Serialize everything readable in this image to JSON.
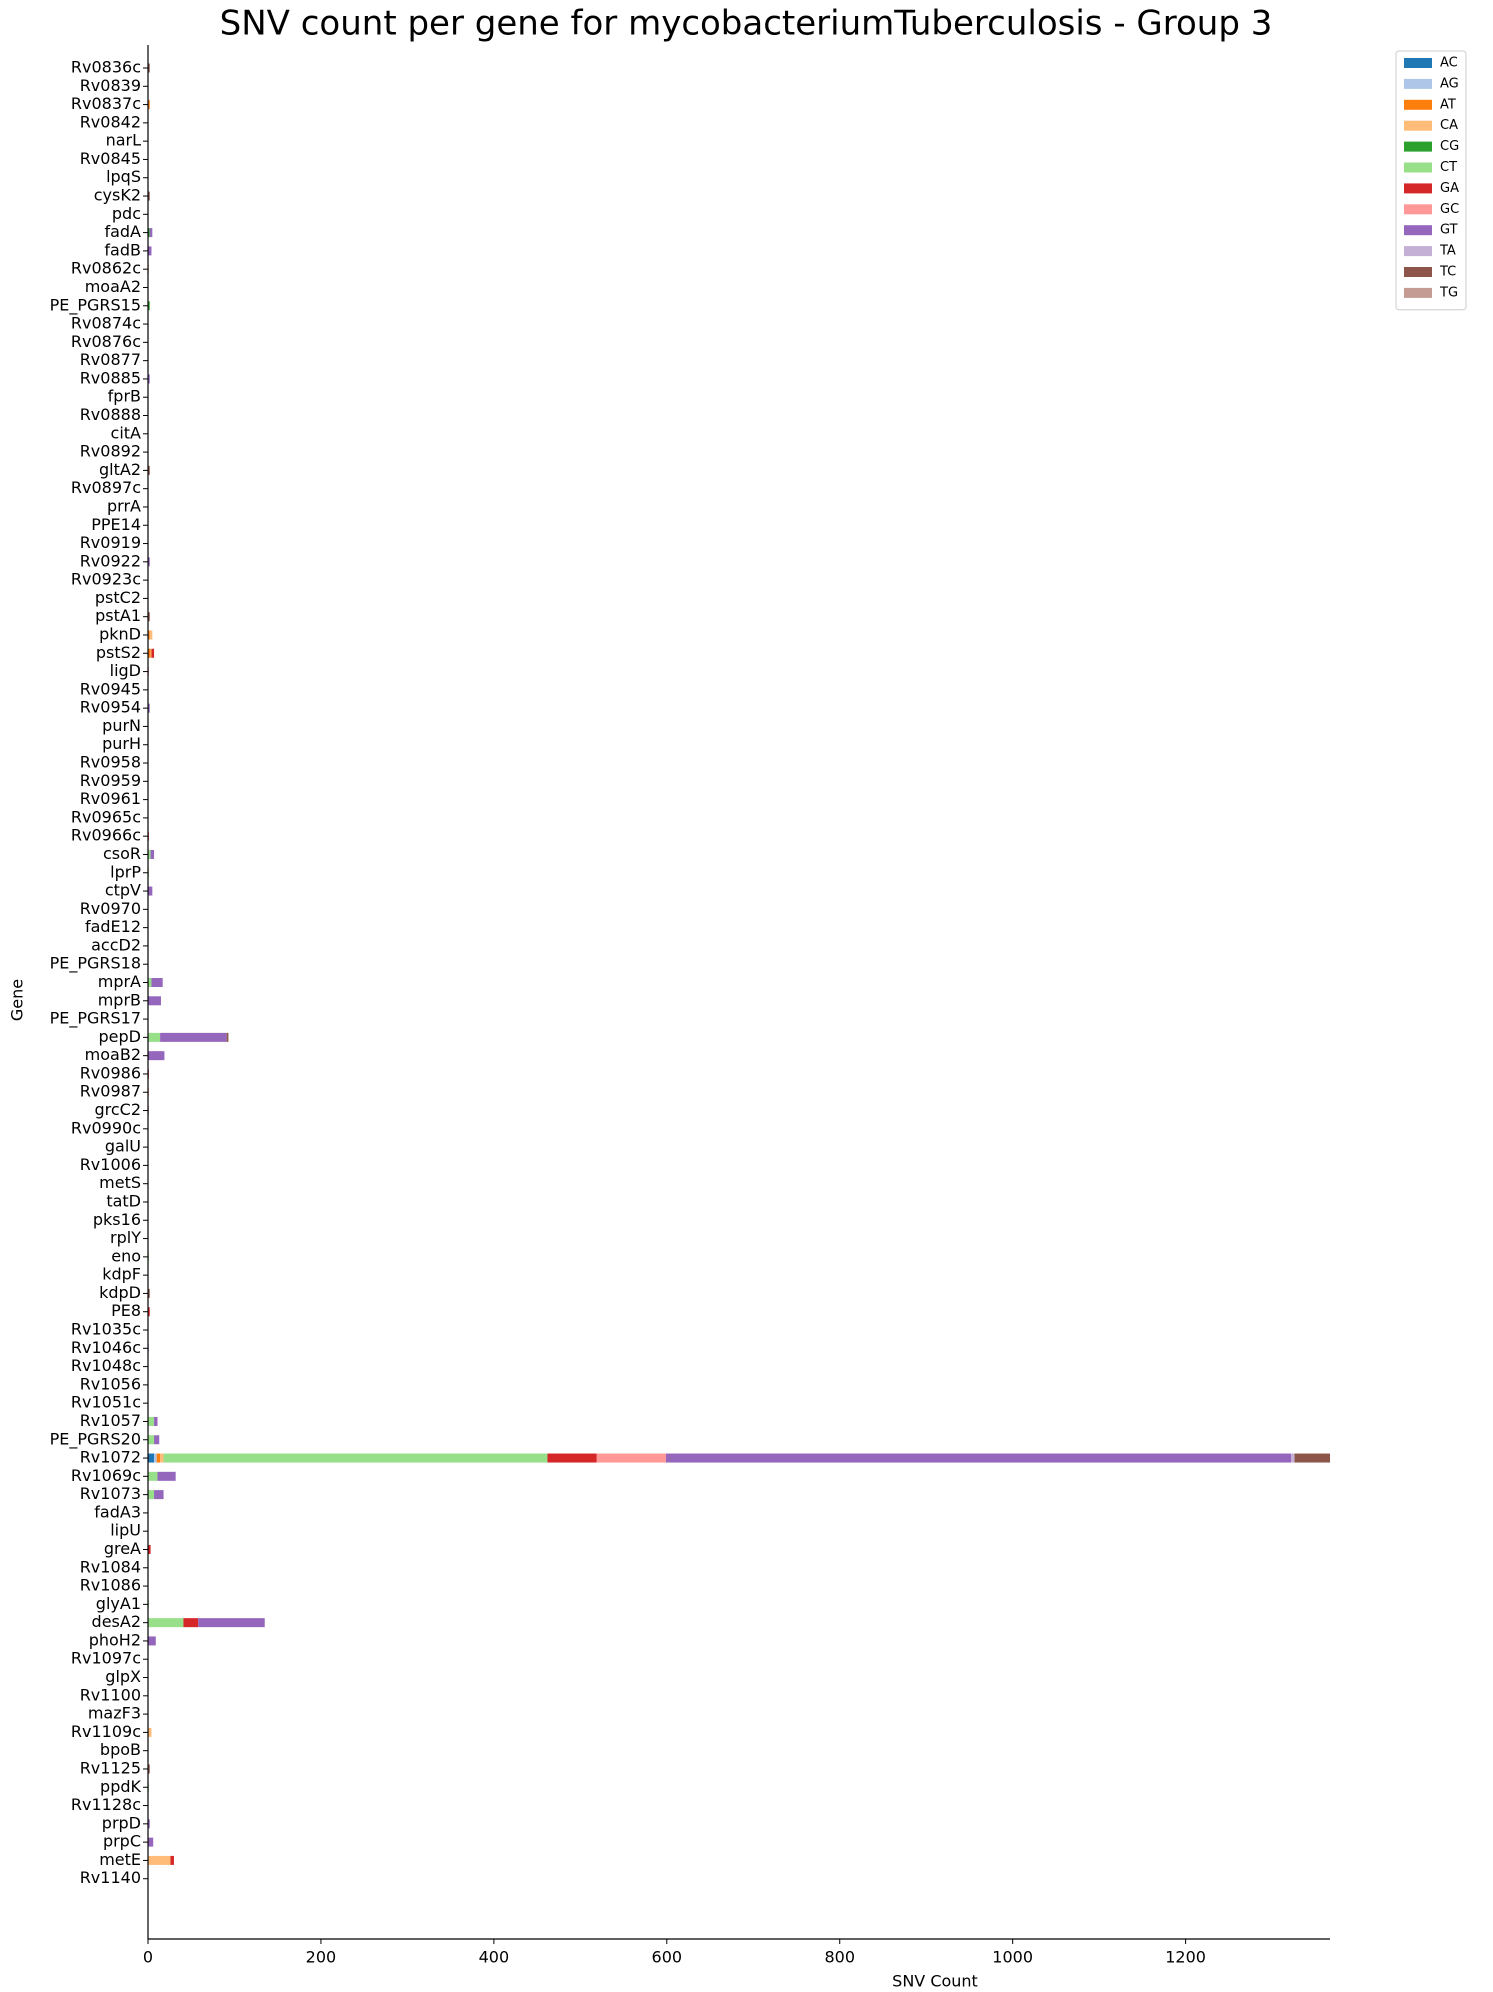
{
  "chart_data": {
    "type": "barh-stacked",
    "title": "SNV count per gene for mycobacteriumTuberculosis - Group 3",
    "xlabel": "SNV Count",
    "ylabel": "Gene",
    "categories": [
      "Rv0836c",
      "Rv0839",
      "Rv0837c",
      "Rv0842",
      "narL",
      "Rv0845",
      "lpqS",
      "cysK2",
      "pdc",
      "fadA",
      "fadB",
      "Rv0862c",
      "moaA2",
      "PE_PGRS15",
      "Rv0874c",
      "Rv0876c",
      "Rv0877",
      "Rv0885",
      "fprB",
      "Rv0888",
      "citA",
      "Rv0892",
      "gltA2",
      "Rv0897c",
      "prrA",
      "PPE14",
      "Rv0919",
      "Rv0922",
      "Rv0923c",
      "pstC2",
      "pstA1",
      "pknD",
      "pstS2",
      "ligD",
      "Rv0945",
      "Rv0954",
      "purN",
      "purH",
      "Rv0958",
      "Rv0959",
      "Rv0961",
      "Rv0965c",
      "Rv0966c",
      "csoR",
      "lprP",
      "ctpV",
      "Rv0970",
      "fadE12",
      "accD2",
      "PE_PGRS18",
      "mprA",
      "mprB",
      "PE_PGRS17",
      "pepD",
      "moaB2",
      "Rv0986",
      "Rv0987",
      "grcC2",
      "Rv0990c",
      "galU",
      "Rv1006",
      "metS",
      "tatD",
      "pks16",
      "rplY",
      "eno",
      "kdpF",
      "kdpD",
      "PE8",
      "Rv1035c",
      "Rv1046c",
      "Rv1048c",
      "Rv1056",
      "Rv1051c",
      "Rv1057",
      "PE_PGRS20",
      "Rv1072",
      "Rv1069c",
      "Rv1073",
      "fadA3",
      "lipU",
      "greA",
      "Rv1084",
      "Rv1086",
      "glyA1",
      "desA2",
      "phoH2",
      "Rv1097c",
      "glpX",
      "Rv1100",
      "mazF3",
      "Rv1109c",
      "bpoB",
      "Rv1125",
      "ppdK",
      "Rv1128c",
      "prpD",
      "prpC",
      "metE",
      "Rv1140"
    ],
    "series": [
      {
        "name": "AC",
        "color": "#1f77b4",
        "values": [
          0,
          0,
          0,
          0,
          0,
          0,
          0,
          0,
          0,
          0,
          0,
          0,
          0,
          0,
          0,
          0,
          0,
          0,
          0,
          0,
          0,
          0,
          0,
          0,
          0,
          0,
          0,
          0,
          0,
          0,
          0,
          0,
          0,
          0,
          0,
          0,
          0,
          0,
          0,
          0,
          0,
          0,
          0,
          0,
          0,
          0,
          0,
          0,
          0,
          0,
          0,
          0,
          0,
          0,
          0,
          0,
          0,
          0,
          0,
          0,
          0,
          0,
          0,
          0,
          0,
          0,
          0,
          0,
          0,
          0,
          0,
          0,
          0,
          0,
          0,
          0,
          7,
          0,
          0,
          0,
          0,
          0,
          0,
          0,
          0,
          0,
          0,
          0,
          0,
          0,
          0,
          0,
          0,
          0,
          0,
          0,
          0,
          0,
          0,
          0
        ]
      },
      {
        "name": "AG",
        "color": "#aec7e8",
        "values": [
          0,
          0,
          0,
          0,
          0,
          0,
          0,
          0,
          0,
          0,
          0,
          0,
          0,
          0,
          0,
          0,
          0,
          0,
          0,
          0,
          0,
          0,
          0,
          0,
          0,
          0,
          0,
          0,
          0,
          0,
          0,
          0,
          0,
          0,
          0,
          0,
          0,
          0,
          0,
          0,
          0,
          0,
          0,
          0,
          0,
          0,
          0,
          0,
          0,
          0,
          0,
          0,
          0,
          0,
          0,
          0,
          0,
          0,
          0,
          0,
          0,
          0,
          0,
          0,
          0,
          0,
          0,
          0,
          0,
          0,
          0,
          0,
          0,
          0,
          0,
          0,
          3,
          0,
          0,
          0,
          0,
          0,
          0,
          0,
          0,
          0,
          0,
          0,
          0,
          0,
          0,
          0,
          0,
          0,
          0,
          0,
          0,
          0,
          0,
          0
        ]
      },
      {
        "name": "AT",
        "color": "#ff7f0e",
        "values": [
          0,
          0,
          2,
          0,
          0,
          0,
          0,
          0,
          0,
          0,
          0,
          0,
          0,
          0,
          0,
          0,
          0,
          0,
          0,
          0,
          0,
          0,
          0,
          0,
          0,
          0,
          0,
          0,
          0,
          0,
          0,
          2,
          3,
          0,
          0,
          0,
          0,
          0,
          0,
          0,
          0,
          0,
          0,
          0,
          0,
          0,
          0,
          0,
          0,
          0,
          0,
          0,
          0,
          0,
          0,
          0,
          0,
          0,
          0,
          0,
          0,
          0,
          0,
          0,
          0,
          0,
          0,
          0,
          0,
          0,
          0,
          0,
          0,
          0,
          0,
          0,
          4,
          0,
          0,
          0,
          0,
          0,
          0,
          0,
          0,
          0,
          0,
          0,
          0,
          0,
          0,
          0,
          0,
          0,
          0,
          0,
          0,
          0,
          0,
          0
        ]
      },
      {
        "name": "CA",
        "color": "#ffbb78",
        "values": [
          0,
          0,
          0,
          0,
          0,
          0,
          0,
          0,
          0,
          0,
          0,
          1,
          0,
          0,
          0,
          0,
          0,
          0,
          0,
          0,
          0,
          0,
          0,
          0,
          0,
          0,
          0,
          0,
          0,
          0,
          0,
          3,
          1,
          0,
          0,
          0,
          0,
          0,
          0,
          0,
          0,
          0,
          0,
          0,
          0,
          0,
          0,
          0,
          0,
          0,
          0,
          0,
          0,
          0,
          0,
          0,
          0,
          0,
          0,
          0,
          0,
          0,
          0,
          0,
          0,
          0,
          0,
          0,
          0,
          0,
          0,
          0,
          0,
          0,
          0,
          0,
          4,
          0,
          0,
          0,
          0,
          0,
          0,
          0,
          0,
          0,
          0,
          0,
          0,
          0,
          0,
          4,
          0,
          0,
          0,
          0,
          0,
          0,
          26,
          0
        ]
      },
      {
        "name": "CG",
        "color": "#2ca02c",
        "values": [
          0,
          0,
          0,
          0,
          0,
          0,
          0,
          0,
          0,
          2,
          0,
          0,
          0,
          2,
          0,
          0,
          0,
          0,
          0,
          0,
          0,
          0,
          0,
          0,
          0,
          0,
          0,
          0,
          0,
          0,
          0,
          0,
          0,
          0,
          0,
          0,
          0,
          0,
          0,
          0,
          0,
          0,
          0,
          0,
          0,
          0,
          0,
          0,
          0,
          0,
          0,
          0,
          0,
          0,
          0,
          0,
          0,
          0,
          0,
          0,
          0,
          0,
          0,
          0,
          0,
          0,
          0,
          0,
          0,
          0,
          0,
          0,
          0,
          0,
          0,
          0,
          0,
          0,
          0,
          0,
          0,
          0,
          0,
          0,
          0,
          0,
          0,
          0,
          0,
          0,
          0,
          0,
          0,
          0,
          0,
          0,
          0,
          0,
          0,
          0
        ]
      },
      {
        "name": "CT",
        "color": "#98df8a",
        "values": [
          0,
          0,
          0,
          0,
          0,
          0,
          0,
          0,
          0,
          0,
          0,
          0,
          0,
          0,
          0,
          0,
          0,
          0,
          0,
          0,
          0,
          0,
          0,
          0,
          0,
          0,
          0,
          0,
          0,
          0,
          0,
          0,
          0,
          0,
          0,
          0,
          0,
          0,
          0,
          0,
          0,
          0,
          0,
          3,
          1,
          0,
          0,
          0,
          0,
          0,
          4,
          0,
          0,
          14,
          0,
          0,
          0,
          0,
          0,
          0,
          0,
          0,
          0,
          0,
          0,
          1,
          0,
          0,
          0,
          0,
          0,
          0,
          0,
          0,
          7,
          7,
          444,
          11,
          7,
          0,
          0,
          0,
          0,
          0,
          1,
          41,
          0,
          0,
          0,
          0,
          0,
          0,
          0,
          0,
          1,
          0,
          0,
          0,
          0,
          0
        ]
      },
      {
        "name": "GA",
        "color": "#d62728",
        "values": [
          0,
          0,
          0,
          0,
          0,
          0,
          0,
          0,
          0,
          0,
          0,
          0,
          0,
          0,
          0,
          0,
          0,
          0,
          0,
          0,
          0,
          0,
          0,
          0,
          0,
          0,
          0,
          0,
          0,
          0,
          0,
          0,
          3,
          0,
          0,
          0,
          0,
          0,
          0,
          0,
          0,
          0,
          1,
          0,
          0,
          0,
          0,
          0,
          0,
          0,
          0,
          0,
          0,
          0,
          0,
          1,
          0,
          0,
          0,
          0,
          0,
          0,
          0,
          0,
          0,
          0,
          0,
          0,
          2,
          0,
          0,
          0,
          0,
          0,
          0,
          0,
          57,
          0,
          0,
          0,
          0,
          3,
          0,
          0,
          0,
          17,
          0,
          0,
          0,
          0,
          0,
          0,
          0,
          0,
          0,
          0,
          0,
          0,
          4,
          0
        ]
      },
      {
        "name": "GC",
        "color": "#ff9896",
        "values": [
          0,
          0,
          0,
          0,
          0,
          0,
          0,
          0,
          0,
          0,
          0,
          0,
          0,
          0,
          0,
          0,
          0,
          0,
          0,
          0,
          0,
          0,
          0,
          0,
          0,
          0,
          0,
          0,
          0,
          0,
          0,
          0,
          0,
          1,
          0,
          0,
          0,
          0,
          0,
          0,
          0,
          0,
          0,
          0,
          0,
          0,
          0,
          0,
          0,
          0,
          0,
          0,
          0,
          0,
          0,
          0,
          1,
          0,
          0,
          0,
          0,
          0,
          0,
          0,
          0,
          0,
          0,
          0,
          0,
          0,
          0,
          0,
          0,
          0,
          0,
          0,
          80,
          0,
          0,
          0,
          0,
          0,
          0,
          0,
          0,
          0,
          0,
          0,
          0,
          0,
          0,
          0,
          0,
          0,
          0,
          0,
          0,
          0,
          0,
          0
        ]
      },
      {
        "name": "GT",
        "color": "#9467bd",
        "values": [
          0,
          0,
          0,
          0,
          0,
          0,
          0,
          0,
          0,
          3,
          4,
          0,
          0,
          0,
          0,
          0,
          0,
          2,
          0,
          0,
          0,
          0,
          0,
          0,
          0,
          0,
          0,
          2,
          0,
          0,
          0,
          0,
          0,
          0,
          0,
          2,
          0,
          0,
          0,
          0,
          0,
          0,
          0,
          4,
          0,
          5,
          0,
          0,
          0,
          0,
          13,
          15,
          0,
          77,
          19,
          0,
          0,
          0,
          0,
          0,
          0,
          0,
          0,
          0,
          0,
          0,
          0,
          0,
          0,
          0,
          0,
          0,
          0,
          0,
          4,
          6,
          723,
          21,
          11,
          0,
          0,
          0,
          0,
          0,
          0,
          77,
          9,
          0,
          0,
          0,
          0,
          0,
          0,
          0,
          0,
          0,
          2,
          6,
          0,
          0
        ]
      },
      {
        "name": "TA",
        "color": "#c5b0d5",
        "values": [
          0,
          0,
          0,
          0,
          0,
          0,
          0,
          0,
          0,
          0,
          0,
          0,
          0,
          0,
          0,
          0,
          0,
          0,
          0,
          0,
          0,
          0,
          0,
          0,
          0,
          0,
          0,
          0,
          0,
          0,
          0,
          0,
          0,
          0,
          0,
          0,
          0,
          0,
          0,
          0,
          0,
          0,
          0,
          0,
          0,
          0,
          0,
          0,
          0,
          0,
          0,
          0,
          0,
          0,
          0,
          0,
          0,
          0,
          0,
          0,
          0,
          0,
          0,
          0,
          0,
          0,
          0,
          0,
          0,
          0,
          1,
          0,
          0,
          0,
          0,
          0,
          4,
          0,
          0,
          0,
          0,
          0,
          0,
          0,
          0,
          0,
          0,
          0,
          0,
          0,
          0,
          0,
          0,
          0,
          0,
          0,
          0,
          0,
          0,
          0
        ]
      },
      {
        "name": "TC",
        "color": "#8c564b",
        "values": [
          2,
          0,
          0,
          0,
          0,
          0,
          0,
          2,
          0,
          0,
          0,
          0,
          0,
          0,
          0,
          0,
          0,
          0,
          0,
          0,
          0,
          0,
          2,
          0,
          0,
          0,
          0,
          0,
          0,
          0,
          2,
          0,
          0,
          0,
          0,
          0,
          0,
          0,
          0,
          0,
          0,
          0,
          0,
          0,
          0,
          0,
          0,
          0,
          0,
          0,
          0,
          0,
          0,
          2,
          0,
          0,
          0,
          0,
          0,
          0,
          0,
          0,
          0,
          0,
          0,
          0,
          0,
          2,
          0,
          0,
          0,
          0,
          0,
          0,
          0,
          0,
          41,
          0,
          0,
          0,
          0,
          0,
          0,
          0,
          0,
          0,
          0,
          0,
          0,
          0,
          0,
          0,
          0,
          2,
          0,
          0,
          0,
          0,
          0,
          0
        ]
      },
      {
        "name": "TG",
        "color": "#c49c94",
        "values": [
          0,
          0,
          0,
          0,
          0,
          0,
          0,
          0,
          0,
          0,
          0,
          0,
          0,
          0,
          0,
          0,
          0,
          0,
          0,
          0,
          0,
          0,
          0,
          0,
          0,
          0,
          0,
          0,
          0,
          0,
          0,
          0,
          0,
          0,
          0,
          0,
          0,
          0,
          0,
          0,
          0,
          0,
          0,
          0,
          0,
          0,
          0,
          0,
          0,
          0,
          0,
          0,
          0,
          0,
          0,
          0,
          0,
          1,
          0,
          0,
          0,
          0,
          0,
          0,
          0,
          0,
          0,
          0,
          0,
          0,
          0,
          0,
          0,
          0,
          0,
          0,
          0,
          0,
          0,
          0,
          0,
          0,
          0,
          0,
          0,
          0,
          0,
          0,
          0,
          0,
          0,
          0,
          0,
          0,
          0,
          0,
          0,
          0,
          0,
          0
        ]
      }
    ],
    "xlim": [
      0,
      1367
    ],
    "xticks": [
      0,
      200,
      400,
      600,
      800,
      1000,
      1200
    ],
    "legend": "upper right outside"
  }
}
